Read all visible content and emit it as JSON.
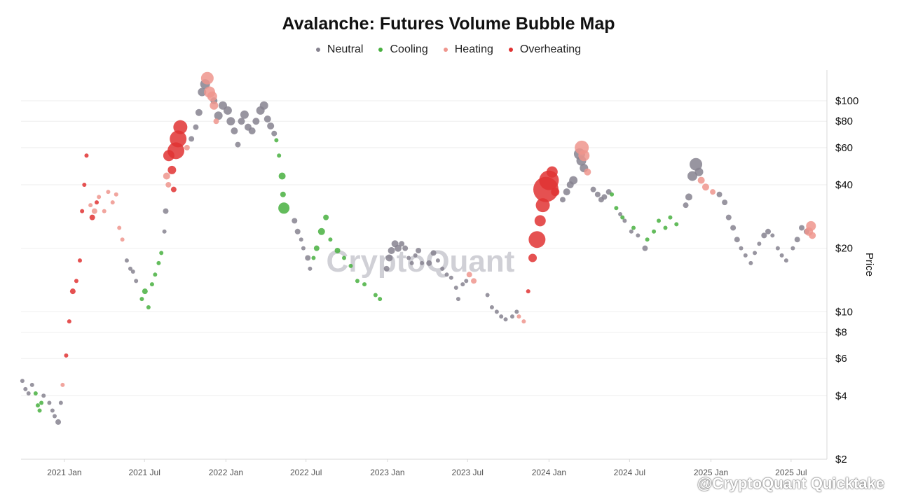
{
  "title": "Avalanche: Futures Volume Bubble Map",
  "legend": [
    {
      "label": "Neutral",
      "color": "#86838f"
    },
    {
      "label": "Cooling",
      "color": "#48b040"
    },
    {
      "label": "Heating",
      "color": "#ef958d"
    },
    {
      "label": "Overheating",
      "color": "#e03232"
    }
  ],
  "watermark": "CryptoQuant",
  "footer": "@CryptoQuant Quicktake",
  "chart_data": {
    "type": "scatter",
    "title": "Avalanche: Futures Volume Bubble Map",
    "ylabel": "Price",
    "y_scale": "log",
    "ylim": [
      2,
      140
    ],
    "xlim": [
      "2020-09-25",
      "2025-09-20"
    ],
    "y_ticks": [
      {
        "value": 2,
        "label": "$2"
      },
      {
        "value": 4,
        "label": "$4"
      },
      {
        "value": 6,
        "label": "$6"
      },
      {
        "value": 8,
        "label": "$8"
      },
      {
        "value": 10,
        "label": "$10"
      },
      {
        "value": 20,
        "label": "$20"
      },
      {
        "value": 40,
        "label": "$40"
      },
      {
        "value": 60,
        "label": "$60"
      },
      {
        "value": 80,
        "label": "$80"
      },
      {
        "value": 100,
        "label": "$100"
      }
    ],
    "x_ticks": [
      {
        "value": "2021-01-01",
        "label": "2021 Jan"
      },
      {
        "value": "2021-07-01",
        "label": "2021 Jul"
      },
      {
        "value": "2022-01-01",
        "label": "2022 Jan"
      },
      {
        "value": "2022-07-01",
        "label": "2022 Jul"
      },
      {
        "value": "2023-01-01",
        "label": "2023 Jan"
      },
      {
        "value": "2023-07-01",
        "label": "2023 Jul"
      },
      {
        "value": "2024-01-01",
        "label": "2024 Jan"
      },
      {
        "value": "2024-07-01",
        "label": "2024 Jul"
      },
      {
        "value": "2025-01-01",
        "label": "2025 Jan"
      },
      {
        "value": "2025-07-01",
        "label": "2025 Jul"
      }
    ],
    "series": [
      {
        "name": "Neutral",
        "color": "#86838f",
        "points": [
          [
            "2020-09-28",
            4.7,
            3
          ],
          [
            "2020-10-05",
            4.3,
            3
          ],
          [
            "2020-10-12",
            4.1,
            3
          ],
          [
            "2020-10-20",
            4.5,
            3
          ],
          [
            "2020-11-15",
            4.0,
            3
          ],
          [
            "2020-11-28",
            3.7,
            3
          ],
          [
            "2020-12-05",
            3.4,
            3
          ],
          [
            "2020-12-10",
            3.2,
            3
          ],
          [
            "2020-12-18",
            3.0,
            4
          ],
          [
            "2020-12-24",
            3.7,
            3
          ],
          [
            "2021-05-22",
            17.5,
            3
          ],
          [
            "2021-05-30",
            16.0,
            3
          ],
          [
            "2021-06-05",
            15.5,
            3
          ],
          [
            "2021-06-12",
            14.0,
            3
          ],
          [
            "2021-08-18",
            30.0,
            4
          ],
          [
            "2021-08-15",
            24.0,
            3
          ],
          [
            "2021-10-15",
            66.0,
            4
          ],
          [
            "2021-10-25",
            75.0,
            4
          ],
          [
            "2021-11-01",
            88.0,
            5
          ],
          [
            "2021-11-08",
            110.0,
            6
          ],
          [
            "2021-11-15",
            120.0,
            7
          ],
          [
            "2021-12-05",
            100.0,
            5
          ],
          [
            "2021-12-15",
            85.0,
            6
          ],
          [
            "2021-12-25",
            95.0,
            6
          ],
          [
            "2022-01-05",
            90.0,
            6
          ],
          [
            "2022-01-12",
            80.0,
            6
          ],
          [
            "2022-01-20",
            72.0,
            5
          ],
          [
            "2022-01-28",
            62.0,
            4
          ],
          [
            "2022-02-05",
            80.0,
            5
          ],
          [
            "2022-02-12",
            86.0,
            6
          ],
          [
            "2022-02-20",
            75.0,
            5
          ],
          [
            "2022-03-01",
            72.0,
            5
          ],
          [
            "2022-03-10",
            80.0,
            5
          ],
          [
            "2022-03-20",
            90.0,
            6
          ],
          [
            "2022-03-28",
            95.0,
            6
          ],
          [
            "2022-04-05",
            82.0,
            5
          ],
          [
            "2022-04-12",
            76.0,
            5
          ],
          [
            "2022-04-20",
            70.0,
            4
          ],
          [
            "2022-06-05",
            27.0,
            4
          ],
          [
            "2022-06-12",
            24.0,
            4
          ],
          [
            "2022-06-20",
            22.0,
            3
          ],
          [
            "2022-06-25",
            20.0,
            3
          ],
          [
            "2022-07-05",
            18.0,
            4
          ],
          [
            "2022-07-10",
            16.0,
            3
          ],
          [
            "2022-12-30",
            16.0,
            4
          ],
          [
            "2023-01-05",
            18.0,
            5
          ],
          [
            "2023-01-10",
            19.5,
            5
          ],
          [
            "2023-01-18",
            21.0,
            5
          ],
          [
            "2023-01-25",
            20.0,
            5
          ],
          [
            "2023-02-02",
            21.0,
            4
          ],
          [
            "2023-02-10",
            20.0,
            4
          ],
          [
            "2023-02-18",
            18.0,
            3
          ],
          [
            "2023-02-25",
            17.0,
            3
          ],
          [
            "2023-03-05",
            18.5,
            3
          ],
          [
            "2023-03-12",
            19.5,
            4
          ],
          [
            "2023-03-20",
            17.0,
            3
          ],
          [
            "2023-04-05",
            17.0,
            4
          ],
          [
            "2023-04-15",
            19.0,
            4
          ],
          [
            "2023-04-25",
            17.5,
            3
          ],
          [
            "2023-05-05",
            16.0,
            3
          ],
          [
            "2023-05-15",
            15.0,
            3
          ],
          [
            "2023-05-25",
            14.5,
            3
          ],
          [
            "2023-06-05",
            13.0,
            3
          ],
          [
            "2023-06-10",
            11.5,
            3
          ],
          [
            "2023-06-20",
            13.5,
            3
          ],
          [
            "2023-06-28",
            14.0,
            3
          ],
          [
            "2023-08-15",
            12.0,
            3
          ],
          [
            "2023-08-25",
            10.5,
            3
          ],
          [
            "2023-09-05",
            10.0,
            3
          ],
          [
            "2023-09-15",
            9.5,
            3
          ],
          [
            "2023-09-25",
            9.2,
            3
          ],
          [
            "2023-10-10",
            9.5,
            3
          ],
          [
            "2023-10-20",
            10.0,
            3
          ],
          [
            "2024-02-01",
            34.0,
            4
          ],
          [
            "2024-02-10",
            37.0,
            5
          ],
          [
            "2024-02-18",
            40.0,
            5
          ],
          [
            "2024-02-25",
            42.0,
            6
          ],
          [
            "2024-03-10",
            56.0,
            8
          ],
          [
            "2024-03-14",
            52.0,
            7
          ],
          [
            "2024-03-20",
            48.0,
            6
          ],
          [
            "2024-04-10",
            38.0,
            4
          ],
          [
            "2024-04-20",
            36.0,
            4
          ],
          [
            "2024-04-28",
            34.0,
            4
          ],
          [
            "2024-05-05",
            35.0,
            4
          ],
          [
            "2024-05-15",
            37.0,
            4
          ],
          [
            "2024-06-10",
            29.0,
            3
          ],
          [
            "2024-06-20",
            27.0,
            3
          ],
          [
            "2024-07-05",
            24.0,
            3
          ],
          [
            "2024-07-20",
            23.0,
            3
          ],
          [
            "2024-08-05",
            20.0,
            4
          ],
          [
            "2024-11-05",
            32.0,
            4
          ],
          [
            "2024-11-12",
            35.0,
            5
          ],
          [
            "2024-11-20",
            44.0,
            7
          ],
          [
            "2024-11-28",
            50.0,
            9
          ],
          [
            "2024-12-05",
            46.0,
            6
          ],
          [
            "2025-01-20",
            36.0,
            4
          ],
          [
            "2025-02-01",
            33.0,
            4
          ],
          [
            "2025-02-10",
            28.0,
            4
          ],
          [
            "2025-02-20",
            25.0,
            4
          ],
          [
            "2025-03-01",
            22.0,
            4
          ],
          [
            "2025-03-10",
            20.0,
            3
          ],
          [
            "2025-03-20",
            18.5,
            3
          ],
          [
            "2025-04-01",
            17.0,
            3
          ],
          [
            "2025-04-10",
            19.0,
            3
          ],
          [
            "2025-04-20",
            21.0,
            3
          ],
          [
            "2025-05-01",
            23.0,
            4
          ],
          [
            "2025-05-10",
            24.0,
            4
          ],
          [
            "2025-05-20",
            23.0,
            3
          ],
          [
            "2025-06-01",
            20.0,
            3
          ],
          [
            "2025-06-10",
            18.5,
            3
          ],
          [
            "2025-06-20",
            17.5,
            3
          ],
          [
            "2025-07-05",
            20.0,
            3
          ],
          [
            "2025-07-15",
            22.0,
            4
          ],
          [
            "2025-07-25",
            25.0,
            4
          ],
          [
            "2025-08-05",
            24.0,
            4
          ]
        ]
      },
      {
        "name": "Cooling",
        "color": "#48b040",
        "points": [
          [
            "2020-10-28",
            4.1,
            3
          ],
          [
            "2020-11-02",
            3.6,
            3
          ],
          [
            "2020-11-06",
            3.4,
            3
          ],
          [
            "2020-11-10",
            3.7,
            3
          ],
          [
            "2021-06-25",
            11.5,
            3
          ],
          [
            "2021-07-02",
            12.5,
            4
          ],
          [
            "2021-07-10",
            10.5,
            3
          ],
          [
            "2021-07-18",
            13.5,
            3
          ],
          [
            "2021-07-25",
            15.0,
            3
          ],
          [
            "2021-08-02",
            17.0,
            3
          ],
          [
            "2021-08-08",
            19.0,
            3
          ],
          [
            "2022-04-25",
            65.0,
            3
          ],
          [
            "2022-05-01",
            55.0,
            3
          ],
          [
            "2022-05-08",
            44.0,
            5
          ],
          [
            "2022-05-10",
            36.0,
            4
          ],
          [
            "2022-05-12",
            31.0,
            8
          ],
          [
            "2022-07-18",
            18.0,
            3
          ],
          [
            "2022-07-25",
            20.0,
            4
          ],
          [
            "2022-08-05",
            24.0,
            5
          ],
          [
            "2022-08-15",
            28.0,
            4
          ],
          [
            "2022-08-25",
            22.0,
            3
          ],
          [
            "2022-09-10",
            19.5,
            4
          ],
          [
            "2022-09-25",
            18.0,
            3
          ],
          [
            "2022-10-10",
            16.5,
            3
          ],
          [
            "2022-10-25",
            14.0,
            3
          ],
          [
            "2022-11-10",
            13.5,
            3
          ],
          [
            "2022-12-05",
            12.0,
            3
          ],
          [
            "2022-12-15",
            11.5,
            3
          ],
          [
            "2024-05-22",
            36.0,
            3
          ],
          [
            "2024-06-01",
            31.0,
            3
          ],
          [
            "2024-06-15",
            28.0,
            3
          ],
          [
            "2024-07-10",
            25.0,
            3
          ],
          [
            "2024-08-10",
            22.0,
            3
          ],
          [
            "2024-08-25",
            24.0,
            3
          ],
          [
            "2024-09-05",
            27.0,
            3
          ],
          [
            "2024-09-20",
            25.0,
            3
          ],
          [
            "2024-10-01",
            28.0,
            3
          ],
          [
            "2024-10-15",
            26.0,
            3
          ]
        ]
      },
      {
        "name": "Heating",
        "color": "#ef958d",
        "points": [
          [
            "2020-12-28",
            4.5,
            3
          ],
          [
            "2021-03-01",
            32.0,
            3
          ],
          [
            "2021-03-10",
            30.0,
            4
          ],
          [
            "2021-03-20",
            35.0,
            3
          ],
          [
            "2021-04-01",
            30.0,
            3
          ],
          [
            "2021-04-10",
            37.0,
            3
          ],
          [
            "2021-04-20",
            33.0,
            3
          ],
          [
            "2021-04-28",
            36.0,
            3
          ],
          [
            "2021-05-05",
            25.0,
            3
          ],
          [
            "2021-05-12",
            22.0,
            3
          ],
          [
            "2021-08-20",
            44.0,
            5
          ],
          [
            "2021-08-24",
            40.0,
            4
          ],
          [
            "2021-10-05",
            60.0,
            4
          ],
          [
            "2021-11-20",
            128.0,
            9
          ],
          [
            "2021-11-25",
            110.0,
            8
          ],
          [
            "2021-12-01",
            105.0,
            7
          ],
          [
            "2021-12-05",
            95.0,
            6
          ],
          [
            "2021-12-10",
            80.0,
            4
          ],
          [
            "2023-07-05",
            15.0,
            4
          ],
          [
            "2023-07-15",
            14.0,
            4
          ],
          [
            "2023-10-25",
            9.5,
            3
          ],
          [
            "2023-11-05",
            9.0,
            3
          ],
          [
            "2024-03-15",
            60.0,
            10
          ],
          [
            "2024-03-20",
            55.0,
            8
          ],
          [
            "2024-03-28",
            46.0,
            5
          ],
          [
            "2024-12-10",
            42.0,
            5
          ],
          [
            "2024-12-20",
            39.0,
            5
          ],
          [
            "2025-01-05",
            37.0,
            4
          ],
          [
            "2025-08-10",
            24.0,
            6
          ],
          [
            "2025-08-15",
            25.5,
            7
          ],
          [
            "2025-08-18",
            23.0,
            5
          ]
        ]
      },
      {
        "name": "Overheating",
        "color": "#e03232",
        "points": [
          [
            "2021-01-05",
            6.2,
            3
          ],
          [
            "2021-01-12",
            9.0,
            3
          ],
          [
            "2021-01-20",
            12.5,
            4
          ],
          [
            "2021-01-28",
            14.0,
            3
          ],
          [
            "2021-02-05",
            17.5,
            3
          ],
          [
            "2021-02-10",
            30.0,
            3
          ],
          [
            "2021-02-15",
            40.0,
            3
          ],
          [
            "2021-02-20",
            55.0,
            3
          ],
          [
            "2021-03-05",
            28.0,
            4
          ],
          [
            "2021-03-15",
            33.0,
            3
          ],
          [
            "2021-08-25",
            55.0,
            8
          ],
          [
            "2021-09-01",
            47.0,
            6
          ],
          [
            "2021-09-05",
            38.0,
            4
          ],
          [
            "2021-09-10",
            58.0,
            12
          ],
          [
            "2021-09-15",
            66.0,
            12
          ],
          [
            "2021-09-20",
            75.0,
            10
          ],
          [
            "2023-11-15",
            12.5,
            3
          ],
          [
            "2023-11-25",
            18.0,
            6
          ],
          [
            "2023-12-05",
            22.0,
            12
          ],
          [
            "2023-12-12",
            27.0,
            8
          ],
          [
            "2023-12-18",
            32.0,
            10
          ],
          [
            "2023-12-25",
            38.0,
            18
          ],
          [
            "2024-01-01",
            42.0,
            14
          ],
          [
            "2024-01-08",
            46.0,
            8
          ],
          [
            "2024-01-15",
            37.0,
            6
          ]
        ]
      }
    ]
  }
}
